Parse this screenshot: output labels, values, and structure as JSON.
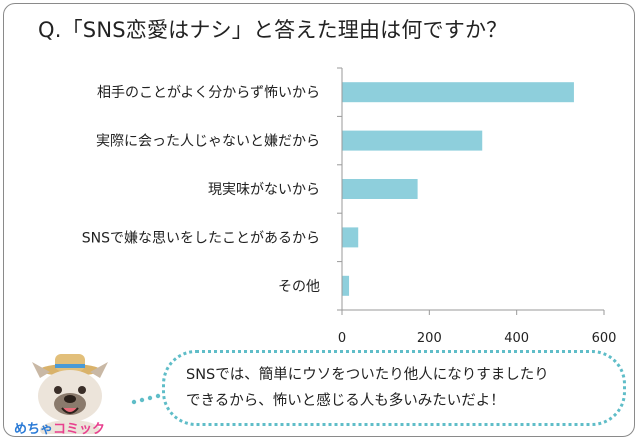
{
  "chart_data": {
    "type": "bar",
    "orientation": "horizontal",
    "title": "Q.「SNS恋愛はナシ」と答えた理由は何ですか？",
    "categories": [
      "相手のことがよく分からず怖いから",
      "実際に会った人じゃないと嫌だから",
      "現実味がないから",
      "SNSで嫌な思いをしたことがあるから",
      "その他"
    ],
    "values": [
      530,
      320,
      172,
      36,
      15
    ],
    "xlim": [
      0,
      600
    ],
    "xticks": [
      0,
      200,
      400,
      600
    ],
    "bar_color": "#8ecfdc",
    "grid": false,
    "legend": "none"
  },
  "bubble": {
    "line1": "SNSでは、簡単にウソをついたり他人になりすましたり",
    "line2": "できるから、怖いと感じる人も多いみたいだよ！"
  },
  "logo": {
    "part1": "めちゃ",
    "part2": "コミック"
  },
  "colors": {
    "accent": "#5fbdc8",
    "bar": "#8ecfdc"
  }
}
